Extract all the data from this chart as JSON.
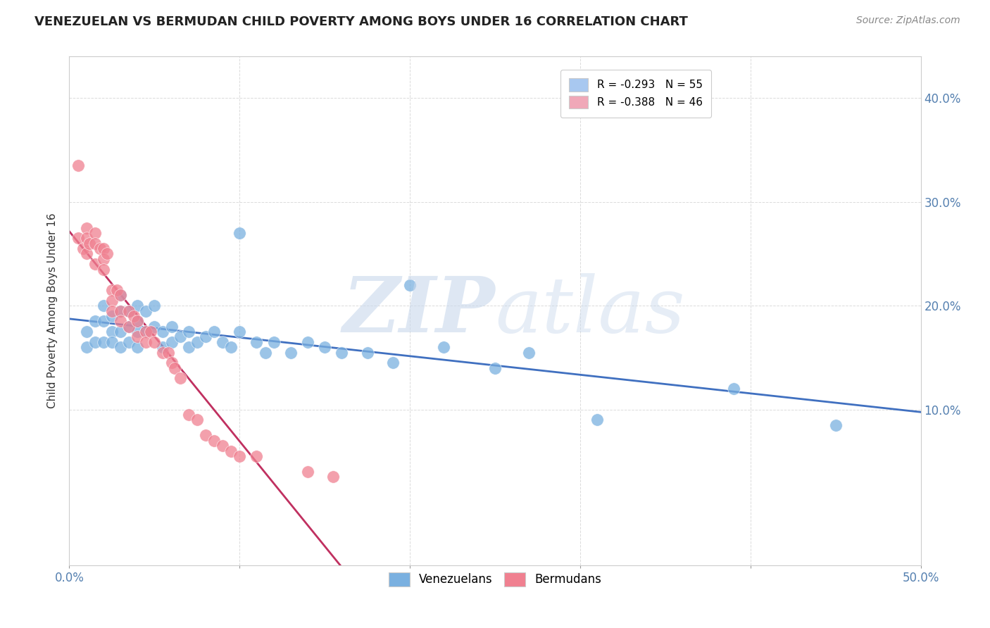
{
  "title": "VENEZUELAN VS BERMUDAN CHILD POVERTY AMONG BOYS UNDER 16 CORRELATION CHART",
  "source": "Source: ZipAtlas.com",
  "ylabel": "Child Poverty Among Boys Under 16",
  "ytick_labels": [
    "10.0%",
    "20.0%",
    "30.0%",
    "40.0%"
  ],
  "ytick_values": [
    0.1,
    0.2,
    0.3,
    0.4
  ],
  "xlim": [
    0.0,
    0.5
  ],
  "ylim": [
    -0.05,
    0.44
  ],
  "legend_entries": [
    {
      "label": "R = -0.293   N = 55",
      "color": "#a8c8f0"
    },
    {
      "label": "R = -0.388   N = 46",
      "color": "#f0a8b8"
    }
  ],
  "venezuelan_color": "#7ab0e0",
  "bermudan_color": "#f08090",
  "trendline_venezuelan_color": "#4070c0",
  "trendline_bermudan_color": "#c03060",
  "background_color": "#ffffff",
  "grid_color": "#cccccc",
  "venezuelan_x": [
    0.01,
    0.01,
    0.015,
    0.015,
    0.02,
    0.02,
    0.02,
    0.025,
    0.025,
    0.025,
    0.03,
    0.03,
    0.03,
    0.03,
    0.035,
    0.035,
    0.035,
    0.04,
    0.04,
    0.04,
    0.04,
    0.045,
    0.045,
    0.05,
    0.05,
    0.055,
    0.055,
    0.06,
    0.06,
    0.065,
    0.07,
    0.07,
    0.075,
    0.08,
    0.085,
    0.09,
    0.095,
    0.1,
    0.1,
    0.11,
    0.115,
    0.12,
    0.13,
    0.14,
    0.15,
    0.16,
    0.175,
    0.19,
    0.2,
    0.22,
    0.25,
    0.27,
    0.31,
    0.39,
    0.45
  ],
  "venezuelan_y": [
    0.175,
    0.16,
    0.185,
    0.165,
    0.2,
    0.185,
    0.165,
    0.19,
    0.175,
    0.165,
    0.21,
    0.195,
    0.175,
    0.16,
    0.195,
    0.18,
    0.165,
    0.2,
    0.185,
    0.175,
    0.16,
    0.195,
    0.175,
    0.2,
    0.18,
    0.175,
    0.16,
    0.18,
    0.165,
    0.17,
    0.175,
    0.16,
    0.165,
    0.17,
    0.175,
    0.165,
    0.16,
    0.27,
    0.175,
    0.165,
    0.155,
    0.165,
    0.155,
    0.165,
    0.16,
    0.155,
    0.155,
    0.145,
    0.22,
    0.16,
    0.14,
    0.155,
    0.09,
    0.12,
    0.085
  ],
  "bermudan_x": [
    0.005,
    0.005,
    0.008,
    0.01,
    0.01,
    0.01,
    0.012,
    0.015,
    0.015,
    0.015,
    0.018,
    0.02,
    0.02,
    0.02,
    0.022,
    0.025,
    0.025,
    0.025,
    0.028,
    0.03,
    0.03,
    0.03,
    0.035,
    0.035,
    0.038,
    0.04,
    0.04,
    0.045,
    0.045,
    0.048,
    0.05,
    0.055,
    0.058,
    0.06,
    0.062,
    0.065,
    0.07,
    0.075,
    0.08,
    0.085,
    0.09,
    0.095,
    0.1,
    0.11,
    0.14,
    0.155
  ],
  "bermudan_y": [
    0.335,
    0.265,
    0.255,
    0.275,
    0.265,
    0.25,
    0.26,
    0.27,
    0.26,
    0.24,
    0.255,
    0.255,
    0.245,
    0.235,
    0.25,
    0.215,
    0.205,
    0.195,
    0.215,
    0.21,
    0.195,
    0.185,
    0.195,
    0.18,
    0.19,
    0.185,
    0.17,
    0.175,
    0.165,
    0.175,
    0.165,
    0.155,
    0.155,
    0.145,
    0.14,
    0.13,
    0.095,
    0.09,
    0.075,
    0.07,
    0.065,
    0.06,
    0.055,
    0.055,
    0.04,
    0.035
  ]
}
